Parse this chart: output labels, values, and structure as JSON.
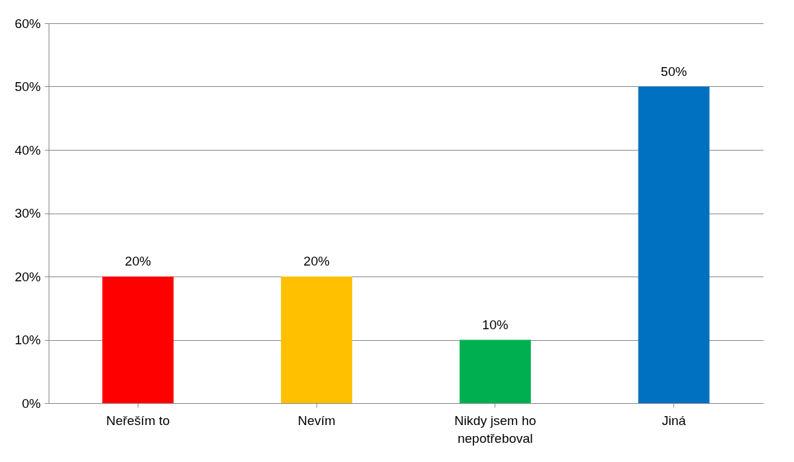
{
  "chart_data": {
    "type": "bar",
    "categories": [
      "Neřeším to",
      "Nevím",
      "Nikdy jsem ho nepotřeboval",
      "Jiná"
    ],
    "values": [
      20,
      20,
      10,
      50
    ],
    "colors": [
      "#ff0000",
      "#ffc000",
      "#00b050",
      "#0070c0"
    ],
    "value_labels": [
      "20%",
      "20%",
      "10%",
      "50%"
    ],
    "ylim": [
      0,
      60
    ],
    "yticks": [
      {
        "value": 0,
        "label": "0%"
      },
      {
        "value": 10,
        "label": "10%"
      },
      {
        "value": 20,
        "label": "20%"
      },
      {
        "value": 30,
        "label": "30%"
      },
      {
        "value": 40,
        "label": "40%"
      },
      {
        "value": 50,
        "label": "50%"
      },
      {
        "value": 60,
        "label": "60%"
      }
    ],
    "grid": "y"
  }
}
